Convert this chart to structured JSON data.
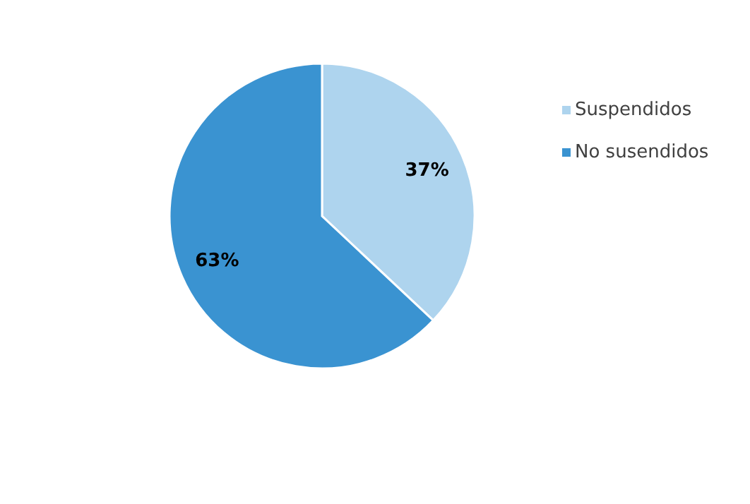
{
  "chart_data": {
    "type": "pie",
    "categories": [
      "Suspendidos",
      "No susendidos"
    ],
    "values": [
      37,
      63
    ],
    "colors": [
      "#aed4ee",
      "#3a93d1"
    ],
    "value_labels": [
      "37%",
      "63%"
    ],
    "legend": "right"
  }
}
